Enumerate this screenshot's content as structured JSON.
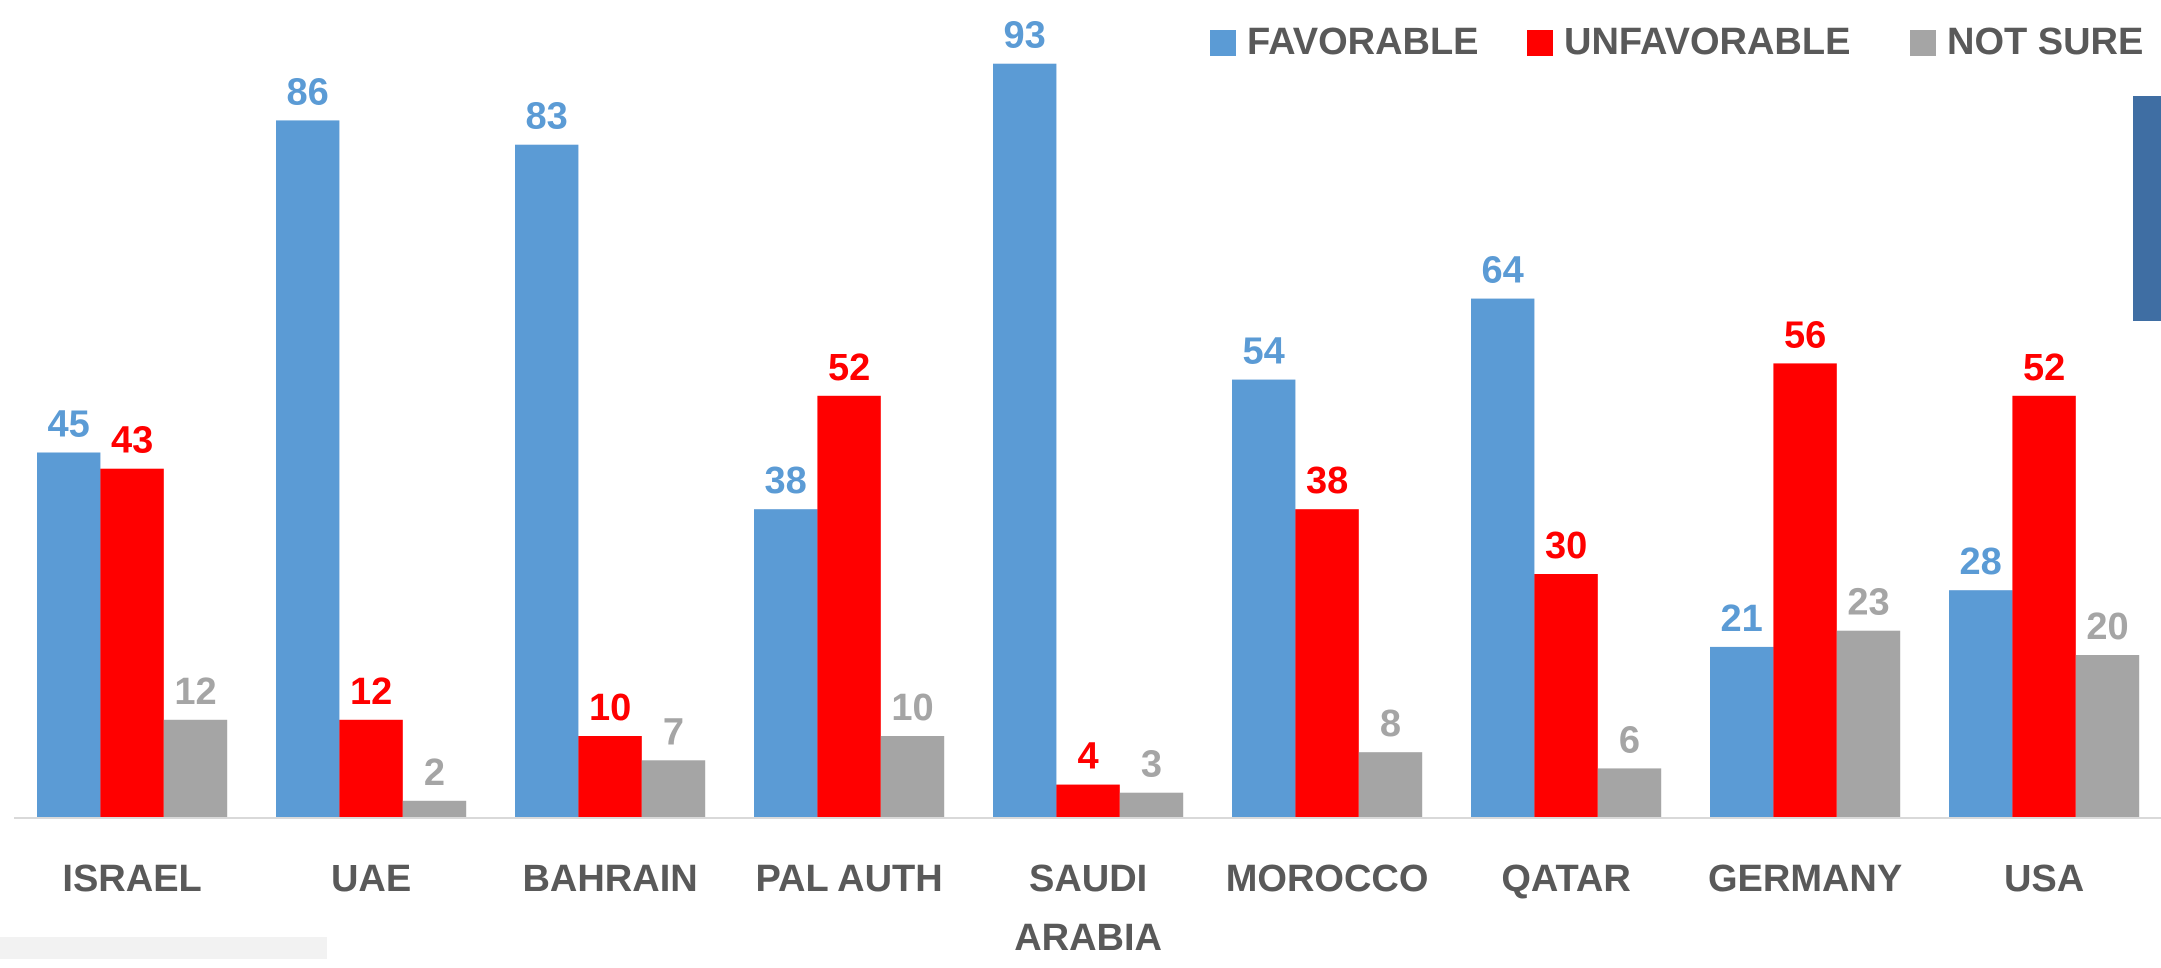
{
  "chart_data": {
    "type": "bar",
    "categories": [
      "ISRAEL",
      "UAE",
      "BAHRAIN",
      "PAL AUTH",
      "SAUDI ARABIA",
      "MOROCCO",
      "QATAR",
      "GERMANY",
      "USA"
    ],
    "series": [
      {
        "name": "FAVORABLE",
        "color": "#5b9bd5",
        "values": [
          45,
          86,
          83,
          38,
          93,
          54,
          64,
          21,
          28
        ]
      },
      {
        "name": "UNFAVORABLE",
        "color": "#ff0000",
        "values": [
          43,
          12,
          10,
          52,
          4,
          38,
          30,
          56,
          52
        ]
      },
      {
        "name": "NOT SURE",
        "color": "#a5a5a5",
        "values": [
          12,
          2,
          7,
          10,
          3,
          8,
          6,
          23,
          20
        ]
      }
    ],
    "ylim": [
      0,
      100
    ],
    "legend": "top-right"
  }
}
